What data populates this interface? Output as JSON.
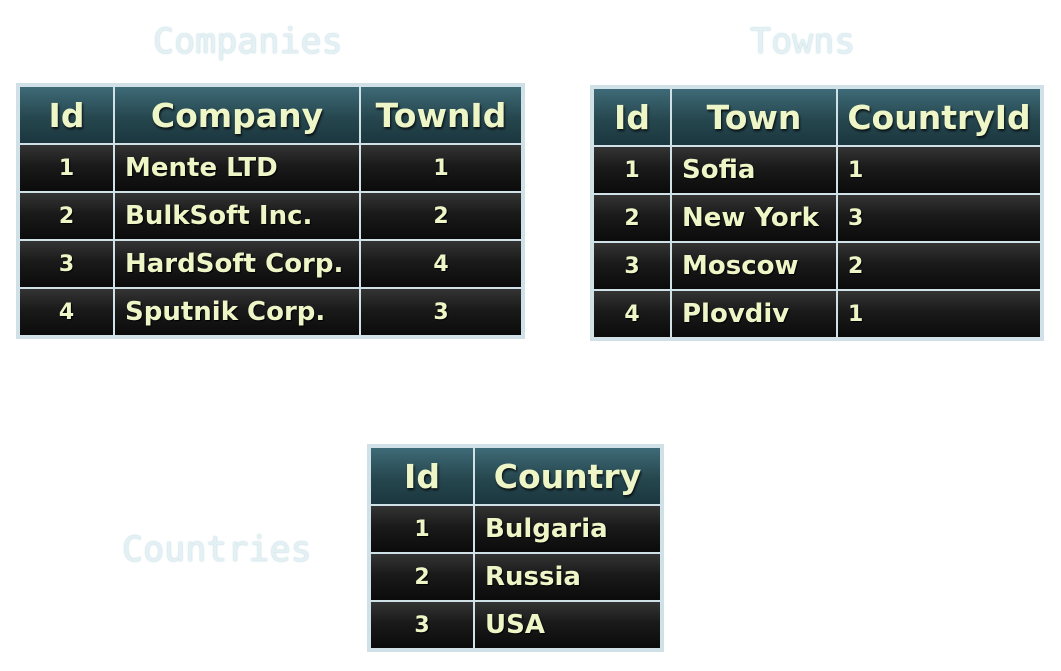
{
  "companies": {
    "caption": "Companies",
    "headers": [
      "Id",
      "Company",
      "TownId"
    ],
    "rows": [
      [
        "1",
        "Mente LTD",
        "1"
      ],
      [
        "2",
        "BulkSoft Inc.",
        "2"
      ],
      [
        "3",
        "HardSoft Corp.",
        "4"
      ],
      [
        "4",
        "Sputnik Corp.",
        "3"
      ]
    ]
  },
  "towns": {
    "caption": "Towns",
    "headers": [
      "Id",
      "Town",
      "CountryId"
    ],
    "rows": [
      [
        "1",
        "Sofia",
        "1"
      ],
      [
        "2",
        "New York",
        "3"
      ],
      [
        "3",
        "Moscow",
        "2"
      ],
      [
        "4",
        "Plovdiv",
        "1"
      ]
    ]
  },
  "countries": {
    "caption": "Countries",
    "headers": [
      "Id",
      "Country"
    ],
    "rows": [
      [
        "1",
        "Bulgaria"
      ],
      [
        "2",
        "Russia"
      ],
      [
        "3",
        "USA"
      ]
    ]
  }
}
